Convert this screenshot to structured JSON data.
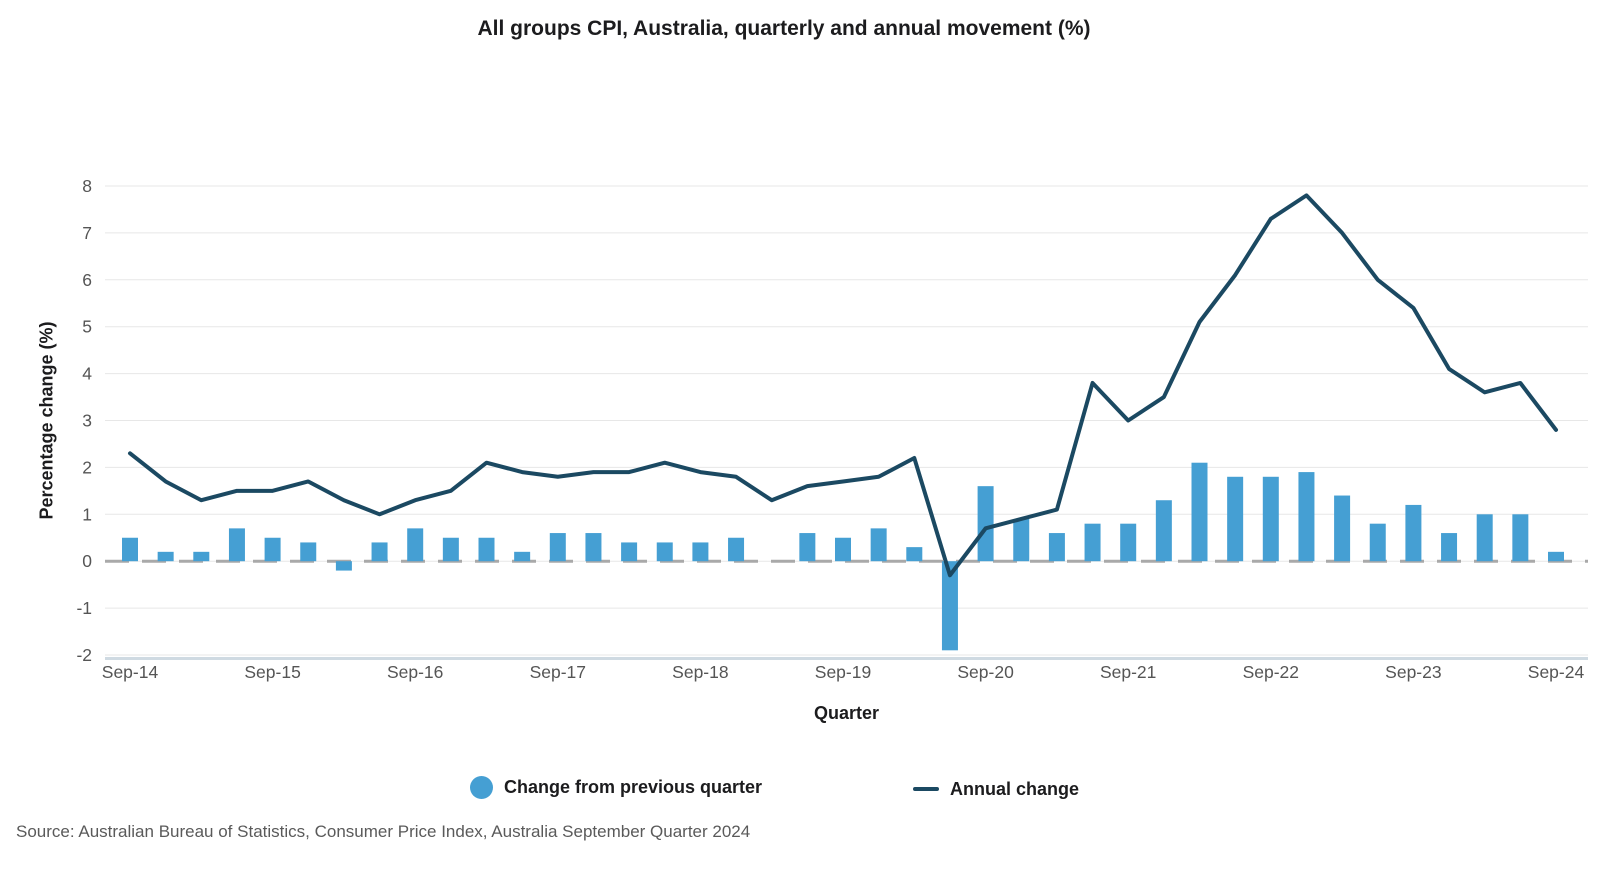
{
  "page": {
    "title": "All groups CPI, Australia, quarterly and annual movement (%)",
    "source": "Source: Australian Bureau of Statistics, Consumer Price Index, Australia September Quarter 2024"
  },
  "colors": {
    "bar": "#459fd3",
    "line": "#1b4962",
    "gridline": "#e7e7e7",
    "zero_line": "#a9a9a9",
    "baseline": "#cfdae2",
    "tick_text": "#555555",
    "title_text": "#1c1c1e",
    "source_text": "#5a5a5a"
  },
  "chart_data": {
    "type": "bar",
    "subtype": "bar-and-line-combo",
    "title": "All groups CPI, Australia, quarterly and annual movement (%)",
    "xlabel": "Quarter",
    "ylabel": "Percentage change (%)",
    "ylim": [
      -2,
      8
    ],
    "y_ticks": [
      -2,
      -1,
      0,
      1,
      2,
      3,
      4,
      5,
      6,
      7,
      8
    ],
    "grid": "horizontal",
    "legend_position": "bottom",
    "x_tick_labels": [
      "Sep-14",
      "Sep-15",
      "Sep-16",
      "Sep-17",
      "Sep-18",
      "Sep-19",
      "Sep-20",
      "Sep-21",
      "Sep-22",
      "Sep-23",
      "Sep-24"
    ],
    "categories": [
      "Sep-14",
      "Dec-14",
      "Mar-15",
      "Jun-15",
      "Sep-15",
      "Dec-15",
      "Mar-16",
      "Jun-16",
      "Sep-16",
      "Dec-16",
      "Mar-17",
      "Jun-17",
      "Sep-17",
      "Dec-17",
      "Mar-18",
      "Jun-18",
      "Sep-18",
      "Dec-18",
      "Mar-19",
      "Jun-19",
      "Sep-19",
      "Dec-19",
      "Mar-20",
      "Jun-20",
      "Sep-20",
      "Dec-20",
      "Mar-21",
      "Jun-21",
      "Sep-21",
      "Dec-21",
      "Mar-22",
      "Jun-22",
      "Sep-22",
      "Dec-22",
      "Mar-23",
      "Jun-23",
      "Sep-23",
      "Dec-23",
      "Mar-24",
      "Jun-24",
      "Sep-24"
    ],
    "series": [
      {
        "name": "Change from previous quarter",
        "type": "bar",
        "color": "#459fd3",
        "values": [
          0.5,
          0.2,
          0.2,
          0.7,
          0.5,
          0.4,
          -0.2,
          0.4,
          0.7,
          0.5,
          0.5,
          0.2,
          0.6,
          0.6,
          0.4,
          0.4,
          0.4,
          0.5,
          0.0,
          0.6,
          0.5,
          0.7,
          0.3,
          -1.9,
          1.6,
          0.9,
          0.6,
          0.8,
          0.8,
          1.3,
          2.1,
          1.8,
          1.8,
          1.9,
          1.4,
          0.8,
          1.2,
          0.6,
          1.0,
          1.0,
          0.2
        ]
      },
      {
        "name": "Annual change",
        "type": "line",
        "color": "#1b4962",
        "values": [
          2.3,
          1.7,
          1.3,
          1.5,
          1.5,
          1.7,
          1.3,
          1.0,
          1.3,
          1.5,
          2.1,
          1.9,
          1.8,
          1.9,
          1.9,
          2.1,
          1.9,
          1.8,
          1.3,
          1.6,
          1.7,
          1.8,
          2.2,
          -0.3,
          0.7,
          0.9,
          1.1,
          3.8,
          3.0,
          3.5,
          5.1,
          6.1,
          7.3,
          7.8,
          7.0,
          6.0,
          5.4,
          4.1,
          3.6,
          3.8,
          2.8
        ]
      }
    ]
  }
}
